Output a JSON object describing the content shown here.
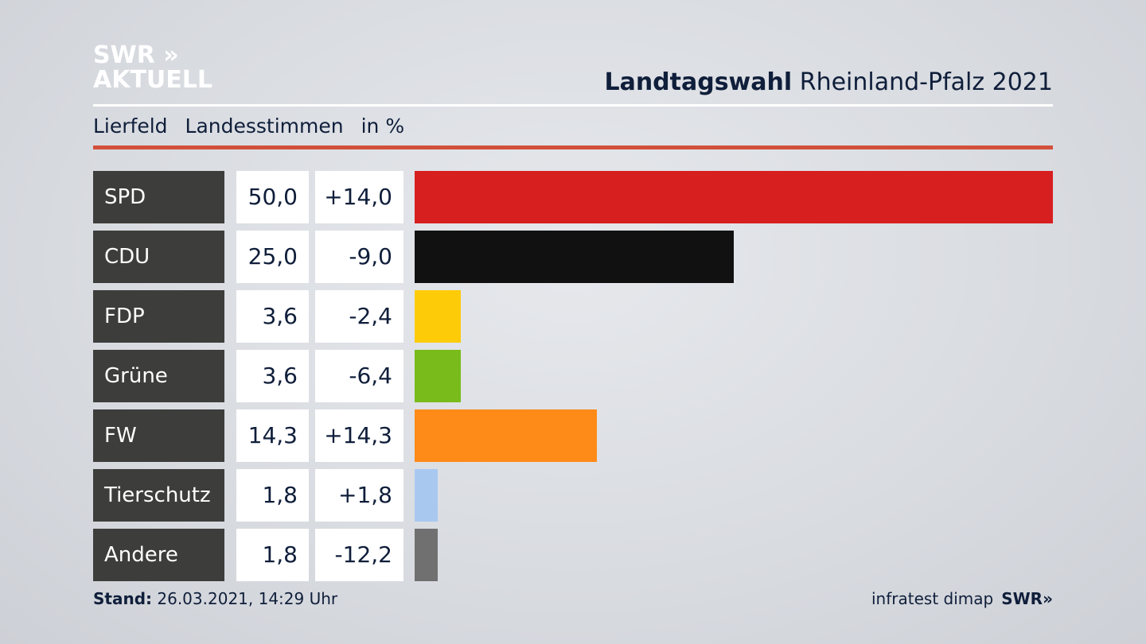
{
  "logo": {
    "line1": "SWR »",
    "line2": "AKTUELL"
  },
  "header": {
    "title_bold": "Landtagswahl",
    "title_rest": "Rheinland-Pfalz 2021"
  },
  "subtitle": {
    "place": "Lierfeld",
    "type": "Landesstimmen",
    "unit": "in %"
  },
  "footer": {
    "stand_label": "Stand:",
    "stand_value": "26.03.2021, 14:29 Uhr",
    "source": "infratest dimap",
    "brand": "SWR»"
  },
  "chart_data": {
    "type": "bar",
    "title": "Landtagswahl Rheinland-Pfalz 2021 – Lierfeld Landesstimmen in %",
    "xlim": [
      0,
      50
    ],
    "categories": [
      "SPD",
      "CDU",
      "FDP",
      "Grüne",
      "FW",
      "Tierschutz",
      "Andere"
    ],
    "values": [
      50.0,
      25.0,
      3.6,
      3.6,
      14.3,
      1.8,
      1.8
    ],
    "value_labels": [
      "50,0",
      "25,0",
      "3,6",
      "3,6",
      "14,3",
      "1,8",
      "1,8"
    ],
    "diff_labels": [
      "+14,0",
      "-9,0",
      "-2,4",
      "-6,4",
      "+14,3",
      "+1,8",
      "-12,2"
    ],
    "colors": [
      "#d71f1f",
      "#111111",
      "#fecb08",
      "#78bb1b",
      "#fe8b17",
      "#a9c8f0",
      "#707070"
    ]
  }
}
